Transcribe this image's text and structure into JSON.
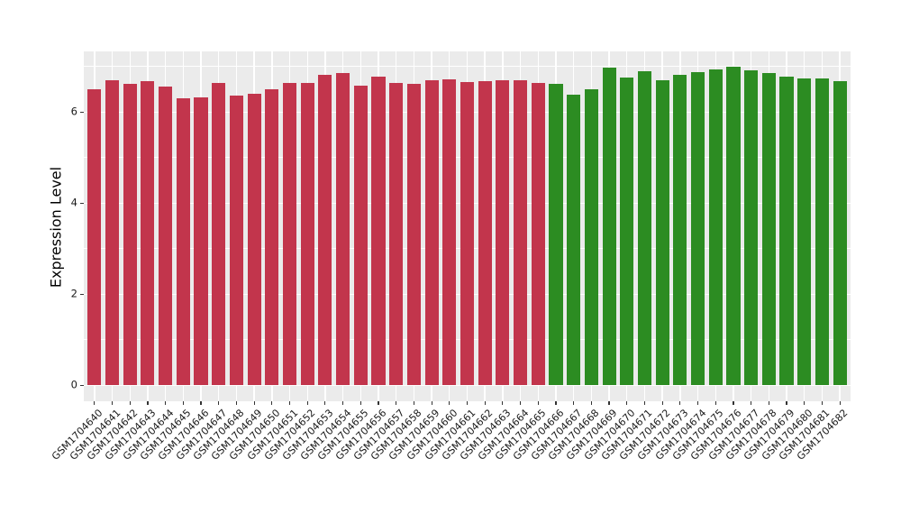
{
  "chart_data": {
    "type": "bar",
    "title": "",
    "xlabel": "",
    "ylabel": "Expression Level",
    "ylim": [
      0,
      7.33
    ],
    "yticks_major": [
      0,
      2,
      4,
      6
    ],
    "yticks_minor": [
      1,
      3,
      5,
      7
    ],
    "ytick_labels": [
      "0",
      "2",
      "4",
      "6"
    ],
    "grid": true,
    "legend": "none",
    "panel_bg": "#EBEBEB",
    "grid_color": "#FFFFFF",
    "tick_color": "#333333",
    "colors": {
      "red": "#C2354C",
      "green": "#2C8C22"
    },
    "categories": [
      "GSM1704640",
      "GSM1704641",
      "GSM1704642",
      "GSM1704643",
      "GSM1704644",
      "GSM1704645",
      "GSM1704646",
      "GSM1704647",
      "GSM1704648",
      "GSM1704649",
      "GSM1704650",
      "GSM1704651",
      "GSM1704652",
      "GSM1704653",
      "GSM1704654",
      "GSM1704655",
      "GSM1704656",
      "GSM1704657",
      "GSM1704658",
      "GSM1704659",
      "GSM1704660",
      "GSM1704661",
      "GSM1704662",
      "GSM1704663",
      "GSM1704664",
      "GSM1704665",
      "GSM1704666",
      "GSM1704667",
      "GSM1704668",
      "GSM1704669",
      "GSM1704670",
      "GSM1704671",
      "GSM1704672",
      "GSM1704673",
      "GSM1704674",
      "GSM1704675",
      "GSM1704676",
      "GSM1704677",
      "GSM1704678",
      "GSM1704679",
      "GSM1704680",
      "GSM1704681",
      "GSM1704682"
    ],
    "values": [
      6.51,
      6.69,
      6.62,
      6.67,
      6.57,
      6.3,
      6.32,
      6.64,
      6.36,
      6.41,
      6.5,
      6.64,
      6.64,
      6.81,
      6.86,
      6.59,
      6.77,
      6.64,
      6.62,
      6.7,
      6.72,
      6.66,
      6.67,
      6.7,
      6.69,
      6.65,
      6.63,
      6.38,
      6.5,
      6.97,
      6.76,
      6.89,
      6.7,
      6.81,
      6.88,
      6.93,
      6.99,
      6.91,
      6.85,
      6.78,
      6.73,
      6.74,
      6.67
    ],
    "groups": [
      "red",
      "red",
      "red",
      "red",
      "red",
      "red",
      "red",
      "red",
      "red",
      "red",
      "red",
      "red",
      "red",
      "red",
      "red",
      "red",
      "red",
      "red",
      "red",
      "red",
      "red",
      "red",
      "red",
      "red",
      "red",
      "red",
      "green",
      "green",
      "green",
      "green",
      "green",
      "green",
      "green",
      "green",
      "green",
      "green",
      "green",
      "green",
      "green",
      "green",
      "green",
      "green",
      "green"
    ]
  }
}
